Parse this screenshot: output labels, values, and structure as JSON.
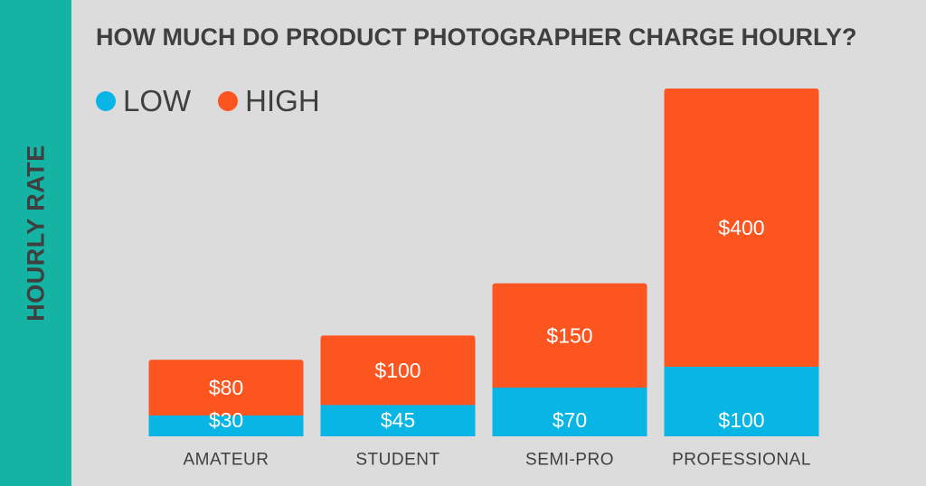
{
  "chart_data": {
    "type": "bar",
    "stacked": true,
    "title": "HOW MUCH DO PRODUCT PHOTOGRAPHER CHARGE HOURLY?",
    "ylabel": "HOURLY RATE",
    "xlabel": "",
    "legend_position": "top-left",
    "grid": false,
    "categories": [
      "AMATEUR",
      "STUDENT",
      "SEMI-PRO",
      "PROFESSIONAL"
    ],
    "series": [
      {
        "name": "LOW",
        "color": "#09b5e5",
        "values": [
          30,
          45,
          70,
          100
        ],
        "labels": [
          "$30",
          "$45",
          "$70",
          "$100"
        ]
      },
      {
        "name": "HIGH",
        "color": "#fd5520",
        "values": [
          80,
          100,
          150,
          400
        ],
        "labels": [
          "$80",
          "$100",
          "$150",
          "$400"
        ]
      }
    ],
    "ylim": [
      0,
      500
    ]
  }
}
